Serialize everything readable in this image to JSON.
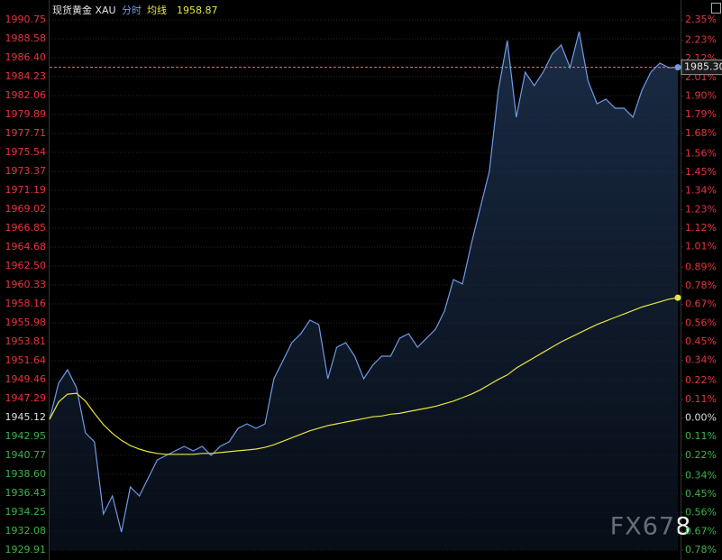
{
  "chart_data": {
    "type": "line",
    "title": "现货黄金 XAU",
    "mode": "分时",
    "avg_label": "均线",
    "average_value": 1958.87,
    "watermark": "FX678",
    "current_price": {
      "value": 1985.3,
      "label": "1985.30"
    },
    "ylim": [
      1929.91,
      1990.75
    ],
    "y2lim": [
      -0.78,
      2.35
    ],
    "grid": true,
    "yticks": [
      1990.75,
      1988.58,
      {
        "value": 1986.4,
        "label": "1986.40"
      },
      1984.23,
      1982.06,
      1979.89,
      1977.71,
      1975.54,
      1973.37,
      1971.19,
      1969.02,
      1966.85,
      1964.68,
      {
        "value": 1962.5,
        "label": "1962.50"
      },
      1960.33,
      1958.16,
      1955.98,
      1953.81,
      1951.64,
      1949.46,
      1947.29,
      1945.12,
      1942.95,
      1940.77,
      {
        "value": 1938.6,
        "label": "1938.60"
      },
      1936.43,
      1934.25,
      1932.08,
      1929.91
    ],
    "y2ticks": [
      {
        "value": 2.35,
        "label": "2.35%"
      },
      {
        "value": 2.23,
        "label": "2.23%"
      },
      {
        "value": 2.12,
        "label": "2.12%"
      },
      {
        "value": 2.01,
        "label": "2.01%"
      },
      {
        "value": 1.9,
        "label": "1.90%"
      },
      {
        "value": 1.79,
        "label": "1.79%"
      },
      {
        "value": 1.68,
        "label": "1.68%"
      },
      {
        "value": 1.56,
        "label": "1.56%"
      },
      {
        "value": 1.45,
        "label": "1.45%"
      },
      {
        "value": 1.34,
        "label": "1.34%"
      },
      {
        "value": 1.23,
        "label": "1.23%"
      },
      {
        "value": 1.12,
        "label": "1.12%"
      },
      {
        "value": 1.01,
        "label": "1.01%"
      },
      {
        "value": 0.89,
        "label": "0.89%"
      },
      {
        "value": 0.78,
        "label": "0.78%"
      },
      {
        "value": 0.67,
        "label": "0.67%"
      },
      {
        "value": 0.56,
        "label": "0.56%"
      },
      {
        "value": 0.45,
        "label": "0.45%"
      },
      {
        "value": 0.34,
        "label": "0.34%"
      },
      {
        "value": 0.22,
        "label": "0.22%"
      },
      {
        "value": 0.11,
        "label": "0.11%"
      },
      {
        "value": 0,
        "label": "0.00%"
      },
      {
        "value": -0.11,
        "label": "0.11%"
      },
      {
        "value": -0.22,
        "label": "0.22%"
      },
      {
        "value": -0.34,
        "label": "0.34%"
      },
      {
        "value": -0.45,
        "label": "0.45%"
      },
      {
        "value": -0.56,
        "label": "0.56%"
      },
      {
        "value": -0.67,
        "label": "0.67%"
      },
      {
        "value": -0.78,
        "label": "0.78%"
      }
    ],
    "series": [
      {
        "color": "#6f9be6",
        "values": [
          1944.91,
          1949.05,
          1950.6,
          1948.53,
          1943.36,
          1942.33,
          1934.05,
          1936.12,
          1931.98,
          1937.15,
          1936.12,
          1938.19,
          1940.26,
          1940.77,
          1941.29,
          1941.81,
          1941.29,
          1941.81,
          1940.77,
          1941.81,
          1942.33,
          1943.88,
          1944.4,
          1943.88,
          1944.4,
          1949.57,
          1951.64,
          1953.71,
          1954.74,
          1956.29,
          1955.78,
          1949.57,
          1953.19,
          1953.71,
          1952.16,
          1949.57,
          1951.12,
          1952.16,
          1952.16,
          1954.22,
          1954.74,
          1953.19,
          1954.22,
          1955.26,
          1957.33,
          1960.95,
          1960.44,
          1965.09,
          1969.23,
          1973.37,
          1982.68,
          1988.37,
          1979.58,
          1984.75,
          1983.2,
          1984.75,
          1986.82,
          1987.85,
          1985.27,
          1989.4,
          1983.71,
          1981.13,
          1981.64,
          1980.61,
          1980.61,
          1979.58,
          1982.68,
          1984.75,
          1985.78,
          1985.27,
          1985.3
        ]
      },
      {
        "color": "#e6e640",
        "values": [
          1944.9,
          1946.9,
          1947.8,
          1947.9,
          1947.0,
          1945.6,
          1944.3,
          1943.3,
          1942.5,
          1941.9,
          1941.5,
          1941.2,
          1941.0,
          1940.9,
          1940.9,
          1940.9,
          1940.9,
          1941.0,
          1941.0,
          1941.1,
          1941.2,
          1941.3,
          1941.4,
          1941.5,
          1941.7,
          1942.0,
          1942.4,
          1942.8,
          1943.2,
          1943.6,
          1943.9,
          1944.2,
          1944.4,
          1944.6,
          1944.8,
          1945.0,
          1945.2,
          1945.3,
          1945.5,
          1945.6,
          1945.8,
          1946.0,
          1946.2,
          1946.4,
          1946.7,
          1947.0,
          1947.4,
          1947.8,
          1948.3,
          1948.9,
          1949.5,
          1950.0,
          1950.8,
          1951.4,
          1952.0,
          1952.6,
          1953.2,
          1953.8,
          1954.3,
          1954.8,
          1955.3,
          1955.8,
          1956.2,
          1956.6,
          1957.0,
          1957.4,
          1957.8,
          1958.1,
          1958.4,
          1958.7,
          1958.87
        ]
      }
    ]
  }
}
